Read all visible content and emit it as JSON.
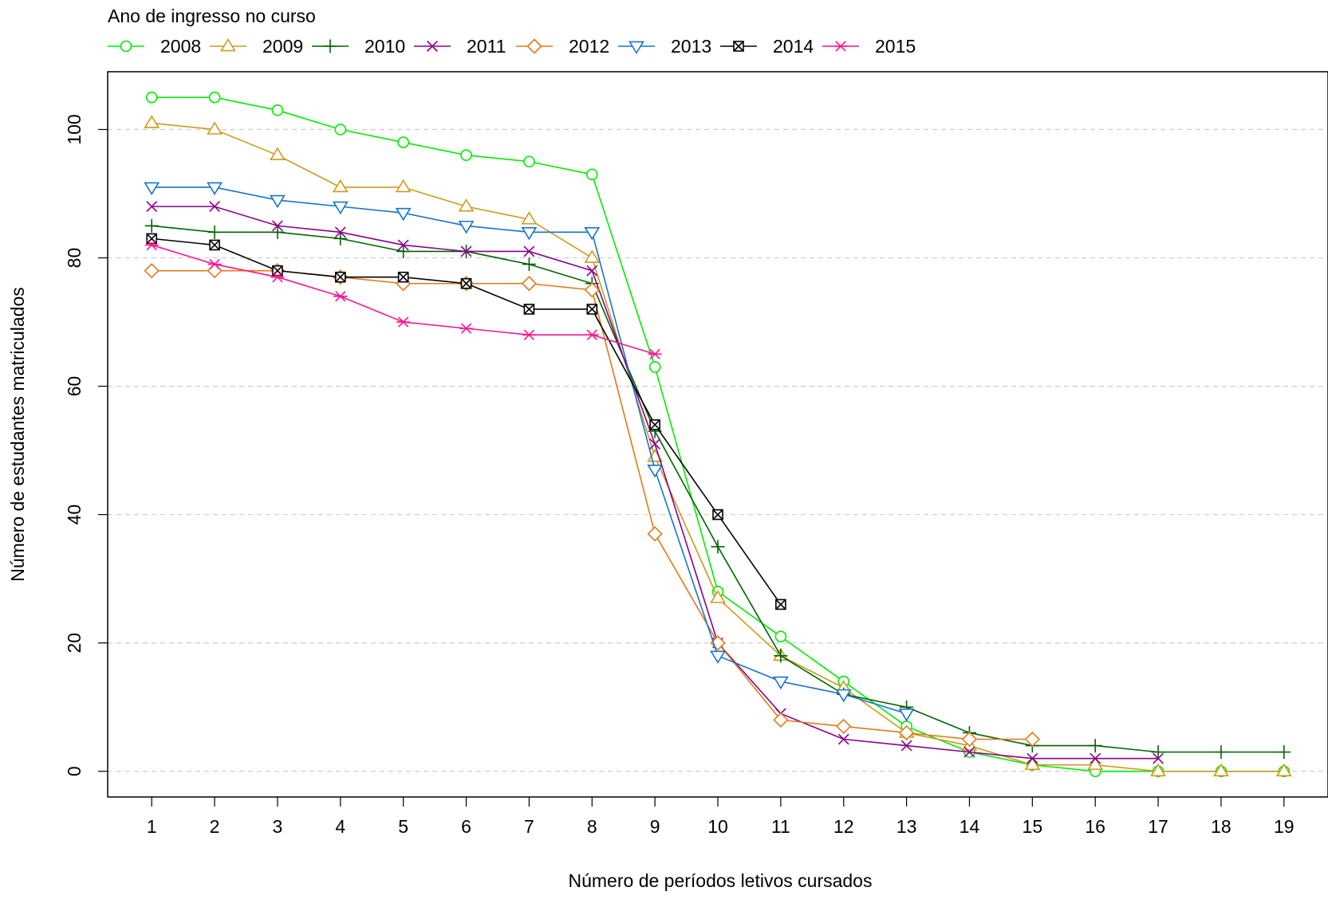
{
  "chart_data": {
    "type": "line",
    "title": "",
    "xlabel": "Número de períodos letivos cursados",
    "ylabel": "Número de estudantes matriculados",
    "xlim": [
      0.3,
      19.7
    ],
    "ylim": [
      -4,
      109
    ],
    "grid": true,
    "legend_position": "top",
    "legend_title": "Ano de ingresso no curso",
    "x_ticks": [
      1,
      2,
      3,
      4,
      5,
      6,
      7,
      8,
      9,
      10,
      11,
      12,
      13,
      14,
      15,
      16,
      17,
      18,
      19
    ],
    "y_ticks": [
      0,
      20,
      40,
      60,
      80,
      100
    ],
    "series": [
      {
        "name": "2008",
        "color": "#00ee00",
        "marker": "circle",
        "x": [
          1,
          2,
          3,
          4,
          5,
          6,
          7,
          8,
          9,
          10,
          11,
          12,
          13,
          14,
          15,
          16,
          17,
          18,
          19
        ],
        "values": [
          105,
          105,
          103,
          100,
          98,
          96,
          95,
          93,
          63,
          28,
          21,
          14,
          7,
          3,
          1,
          0,
          0,
          0,
          0
        ]
      },
      {
        "name": "2009",
        "color": "#cd9b1d",
        "marker": "triangle-up",
        "x": [
          1,
          2,
          3,
          4,
          5,
          6,
          7,
          8,
          9,
          10,
          11,
          12,
          13,
          14,
          15,
          16,
          17,
          18,
          19
        ],
        "values": [
          101,
          100,
          96,
          91,
          91,
          88,
          86,
          80,
          49,
          27,
          18,
          13,
          6,
          4,
          1,
          1,
          0,
          0,
          0
        ]
      },
      {
        "name": "2010",
        "color": "#006400",
        "marker": "plus",
        "x": [
          1,
          2,
          3,
          4,
          5,
          6,
          7,
          8,
          9,
          10,
          11,
          12,
          13,
          14,
          15,
          16,
          17,
          18,
          19
        ],
        "values": [
          85,
          84,
          84,
          83,
          81,
          81,
          79,
          76,
          53,
          35,
          18,
          12,
          10,
          6,
          4,
          4,
          3,
          3,
          3
        ]
      },
      {
        "name": "2011",
        "color": "#8b008b",
        "marker": "cross",
        "x": [
          1,
          2,
          3,
          4,
          5,
          6,
          7,
          8,
          9,
          10,
          11,
          12,
          13,
          14,
          15,
          16,
          17
        ],
        "values": [
          88,
          88,
          85,
          84,
          82,
          81,
          81,
          78,
          51,
          20,
          9,
          5,
          4,
          3,
          2,
          2,
          2
        ]
      },
      {
        "name": "2012",
        "color": "#e07b1a",
        "marker": "diamond",
        "x": [
          1,
          2,
          3,
          4,
          5,
          6,
          7,
          8,
          9,
          10,
          11,
          12,
          13,
          14,
          15
        ],
        "values": [
          78,
          78,
          78,
          77,
          76,
          76,
          76,
          75,
          37,
          20,
          8,
          7,
          6,
          5,
          5
        ]
      },
      {
        "name": "2013",
        "color": "#1874cd",
        "marker": "triangle-down",
        "x": [
          1,
          2,
          3,
          4,
          5,
          6,
          7,
          8,
          9,
          10,
          11,
          12,
          13
        ],
        "values": [
          91,
          91,
          89,
          88,
          87,
          85,
          84,
          84,
          47,
          18,
          14,
          12,
          9
        ]
      },
      {
        "name": "2014",
        "color": "#000000",
        "marker": "square-x",
        "x": [
          1,
          2,
          3,
          4,
          5,
          6,
          7,
          8,
          9,
          10,
          11
        ],
        "values": [
          83,
          82,
          78,
          77,
          77,
          76,
          72,
          72,
          54,
          40,
          26
        ]
      },
      {
        "name": "2015",
        "color": "#ff1493",
        "marker": "asterisk",
        "x": [
          1,
          2,
          3,
          4,
          5,
          6,
          7,
          8,
          9
        ],
        "values": [
          82,
          79,
          77,
          74,
          70,
          69,
          68,
          68,
          65
        ]
      }
    ]
  }
}
